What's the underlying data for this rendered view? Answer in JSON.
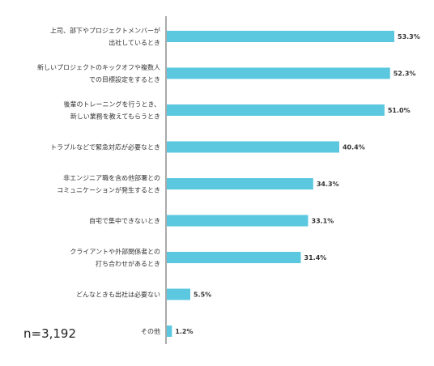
{
  "sample_size": "n=3,192",
  "colors": {
    "bar": "#5bc8e0",
    "axis": "#555555",
    "text": "#333333"
  },
  "chart_data": {
    "type": "bar",
    "orientation": "horizontal",
    "unit": "%",
    "xlim": [
      0,
      60
    ],
    "grid": false,
    "legend": "none",
    "categories": [
      [
        "上司、部下やプロジェクトメンバーが",
        "出社しているとき"
      ],
      [
        "新しいプロジェクトのキックオフや複数人",
        "での目標設定をするとき"
      ],
      [
        "後輩のトレーニングを行うとき、",
        "新しい業務を教えてもらうとき"
      ],
      [
        "トラブルなどで緊急対応が必要なとき"
      ],
      [
        "非エンジニア職を含め他部署との",
        "コミュニケーションが発生するとき"
      ],
      [
        "自宅で集中できないとき"
      ],
      [
        "クライアントや外部関係者との",
        "打ち合わせがあるとき"
      ],
      [
        "どんなときも出社は必要ない"
      ],
      [
        "その他"
      ]
    ],
    "values": [
      53.3,
      52.3,
      51.0,
      40.4,
      34.3,
      33.1,
      31.4,
      5.5,
      1.2
    ],
    "value_labels": [
      "53.3%",
      "52.3%",
      "51.0%",
      "40.4%",
      "34.3%",
      "33.1%",
      "31.4%",
      "5.5%",
      "1.2%"
    ]
  }
}
